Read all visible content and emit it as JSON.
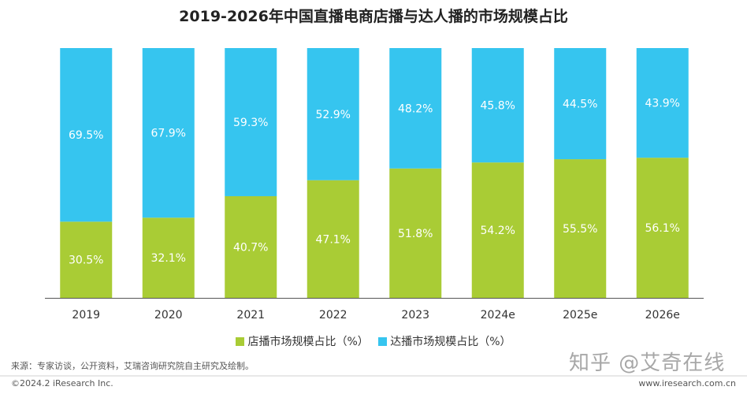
{
  "colors": {
    "store": "#a9cc35",
    "influencer": "#36c5ef"
  },
  "chart_data": {
    "type": "bar",
    "stacked": true,
    "title": "2019-2026年中国直播电商店播与达人播的市场规模占比",
    "categories": [
      "2019",
      "2020",
      "2021",
      "2022",
      "2023",
      "2024e",
      "2025e",
      "2026e"
    ],
    "series": [
      {
        "name": "店播市场规模占比（%）",
        "values": [
          30.5,
          32.1,
          40.7,
          47.1,
          51.8,
          54.2,
          55.5,
          56.1
        ],
        "labels": [
          "30.5%",
          "32.1%",
          "40.7%",
          "47.1%",
          "51.8%",
          "54.2%",
          "55.5%",
          "56.1%"
        ]
      },
      {
        "name": "达播市场规模占比（%）",
        "values": [
          69.5,
          67.9,
          59.3,
          52.9,
          48.2,
          45.8,
          44.5,
          43.9
        ],
        "labels": [
          "69.5%",
          "67.9%",
          "59.3%",
          "52.9%",
          "48.2%",
          "45.8%",
          "44.5%",
          "43.9%"
        ]
      }
    ],
    "ylim": [
      0,
      100
    ],
    "grid": false,
    "legend": "bottom"
  },
  "footer": {
    "source": "来源：专家访谈，公开资料，艾瑞咨询研究院自主研究及绘制。",
    "copyright": "©2024.2 iResearch Inc.",
    "site": "www.iresearch.com.cn",
    "watermark": "知乎 @艾奇在线"
  }
}
